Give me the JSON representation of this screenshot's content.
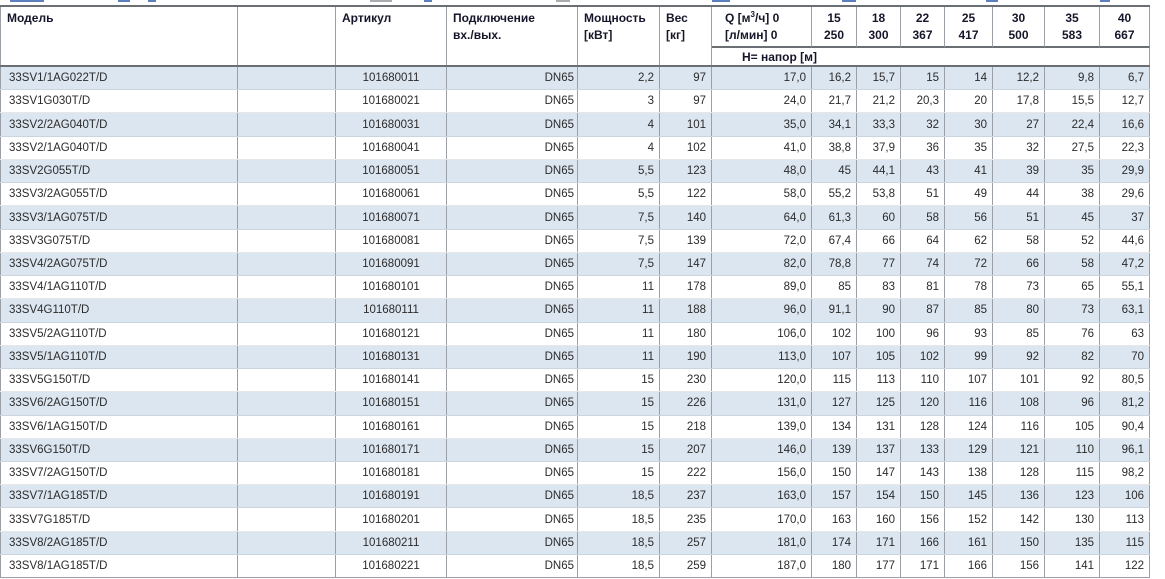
{
  "colors": {
    "row_highlight": "#dce6f1",
    "header_text": "#16162a",
    "grid_line": "#9aa0a6",
    "heavy_line": "#6b6f73",
    "remnant_blue": "#5d7fbf"
  },
  "table": {
    "headers": {
      "model": "Модель",
      "empty": "",
      "article": "Артикул",
      "connection_line1": "Подключение",
      "connection_line2": "вх./вых.",
      "power_line1": "Мощность",
      "power_line2": "[кВт]",
      "weight_line1": "Вес",
      "weight_line2": "[кг]",
      "q_line1_prefix": "Q [м",
      "q_line1_sup": "3",
      "q_line1_suffix": "/ч] 0",
      "q_line2": "[л/мин] 0",
      "head_row_label": "H= напор [м]"
    },
    "flow_columns": [
      {
        "q_m3h": "15",
        "q_lmin": "250"
      },
      {
        "q_m3h": "18",
        "q_lmin": "300"
      },
      {
        "q_m3h": "22",
        "q_lmin": "367"
      },
      {
        "q_m3h": "25",
        "q_lmin": "417"
      },
      {
        "q_m3h": "30",
        "q_lmin": "500"
      },
      {
        "q_m3h": "35",
        "q_lmin": "583"
      },
      {
        "q_m3h": "40",
        "q_lmin": "667"
      }
    ],
    "rows": [
      {
        "model": "33SV1/1AG022T/D",
        "article": "101680011",
        "connection": "DN65",
        "power": "2,2",
        "weight": "97",
        "head": [
          "17,0",
          "16,2",
          "15,7",
          "15",
          "14",
          "12,2",
          "9,8",
          "6,7"
        ]
      },
      {
        "model": "33SV1G030T/D",
        "article": "101680021",
        "connection": "DN65",
        "power": "3",
        "weight": "97",
        "head": [
          "24,0",
          "21,7",
          "21,2",
          "20,3",
          "20",
          "17,8",
          "15,5",
          "12,7"
        ]
      },
      {
        "model": "33SV2/2AG040T/D",
        "article": "101680031",
        "connection": "DN65",
        "power": "4",
        "weight": "101",
        "head": [
          "35,0",
          "34,1",
          "33,3",
          "32",
          "30",
          "27",
          "22,4",
          "16,6"
        ]
      },
      {
        "model": "33SV2/1AG040T/D",
        "article": "101680041",
        "connection": "DN65",
        "power": "4",
        "weight": "102",
        "head": [
          "41,0",
          "38,8",
          "37,9",
          "36",
          "35",
          "32",
          "27,5",
          "22,3"
        ]
      },
      {
        "model": "33SV2G055T/D",
        "article": "101680051",
        "connection": "DN65",
        "power": "5,5",
        "weight": "123",
        "head": [
          "48,0",
          "45",
          "44,1",
          "43",
          "41",
          "39",
          "35",
          "29,9"
        ]
      },
      {
        "model": "33SV3/2AG055T/D",
        "article": "101680061",
        "connection": "DN65",
        "power": "5,5",
        "weight": "122",
        "head": [
          "58,0",
          "55,2",
          "53,8",
          "51",
          "49",
          "44",
          "38",
          "29,6"
        ]
      },
      {
        "model": "33SV3/1AG075T/D",
        "article": "101680071",
        "connection": "DN65",
        "power": "7,5",
        "weight": "140",
        "head": [
          "64,0",
          "61,3",
          "60",
          "58",
          "56",
          "51",
          "45",
          "37"
        ]
      },
      {
        "model": "33SV3G075T/D",
        "article": "101680081",
        "connection": "DN65",
        "power": "7,5",
        "weight": "139",
        "head": [
          "72,0",
          "67,4",
          "66",
          "64",
          "62",
          "58",
          "52",
          "44,6"
        ]
      },
      {
        "model": "33SV4/2AG075T/D",
        "article": "101680091",
        "connection": "DN65",
        "power": "7,5",
        "weight": "147",
        "head": [
          "82,0",
          "78,8",
          "77",
          "74",
          "72",
          "66",
          "58",
          "47,2"
        ]
      },
      {
        "model": "33SV4/1AG110T/D",
        "article": "101680101",
        "connection": "DN65",
        "power": "11",
        "weight": "178",
        "head": [
          "89,0",
          "85",
          "83",
          "81",
          "78",
          "73",
          "65",
          "55,1"
        ]
      },
      {
        "model": "33SV4G110T/D",
        "article": "101680111",
        "connection": "DN65",
        "power": "11",
        "weight": "188",
        "head": [
          "96,0",
          "91,1",
          "90",
          "87",
          "85",
          "80",
          "73",
          "63,1"
        ]
      },
      {
        "model": "33SV5/2AG110T/D",
        "article": "101680121",
        "connection": "DN65",
        "power": "11",
        "weight": "180",
        "head": [
          "106,0",
          "102",
          "100",
          "96",
          "93",
          "85",
          "76",
          "63"
        ]
      },
      {
        "model": "33SV5/1AG110T/D",
        "article": "101680131",
        "connection": "DN65",
        "power": "11",
        "weight": "190",
        "head": [
          "113,0",
          "107",
          "105",
          "102",
          "99",
          "92",
          "82",
          "70"
        ]
      },
      {
        "model": "33SV5G150T/D",
        "article": "101680141",
        "connection": "DN65",
        "power": "15",
        "weight": "230",
        "head": [
          "120,0",
          "115",
          "113",
          "110",
          "107",
          "101",
          "92",
          "80,5"
        ]
      },
      {
        "model": "33SV6/2AG150T/D",
        "article": "101680151",
        "connection": "DN65",
        "power": "15",
        "weight": "226",
        "head": [
          "131,0",
          "127",
          "125",
          "120",
          "116",
          "108",
          "96",
          "81,2"
        ]
      },
      {
        "model": "33SV6/1AG150T/D",
        "article": "101680161",
        "connection": "DN65",
        "power": "15",
        "weight": "218",
        "head": [
          "139,0",
          "134",
          "131",
          "128",
          "124",
          "116",
          "105",
          "90,4"
        ]
      },
      {
        "model": "33SV6G150T/D",
        "article": "101680171",
        "connection": "DN65",
        "power": "15",
        "weight": "207",
        "head": [
          "146,0",
          "139",
          "137",
          "133",
          "129",
          "121",
          "110",
          "96,1"
        ]
      },
      {
        "model": "33SV7/2AG150T/D",
        "article": "101680181",
        "connection": "DN65",
        "power": "15",
        "weight": "222",
        "head": [
          "156,0",
          "150",
          "147",
          "143",
          "138",
          "128",
          "115",
          "98,2"
        ]
      },
      {
        "model": "33SV7/1AG185T/D",
        "article": "101680191",
        "connection": "DN65",
        "power": "18,5",
        "weight": "237",
        "head": [
          "163,0",
          "157",
          "154",
          "150",
          "145",
          "136",
          "123",
          "106"
        ]
      },
      {
        "model": "33SV7G185T/D",
        "article": "101680201",
        "connection": "DN65",
        "power": "18,5",
        "weight": "235",
        "head": [
          "170,0",
          "163",
          "160",
          "156",
          "152",
          "142",
          "130",
          "113"
        ]
      },
      {
        "model": "33SV8/2AG185T/D",
        "article": "101680211",
        "connection": "DN65",
        "power": "18,5",
        "weight": "257",
        "head": [
          "181,0",
          "174",
          "171",
          "166",
          "161",
          "150",
          "135",
          "115"
        ]
      },
      {
        "model": "33SV8/1AG185T/D",
        "article": "101680221",
        "connection": "DN65",
        "power": "18,5",
        "weight": "259",
        "head": [
          "187,0",
          "180",
          "177",
          "171",
          "166",
          "156",
          "141",
          "122"
        ]
      }
    ]
  }
}
